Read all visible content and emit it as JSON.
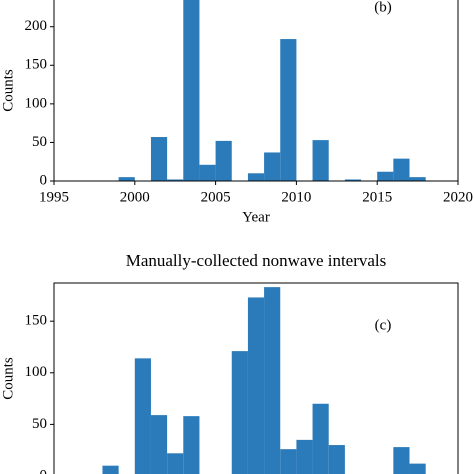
{
  "chart_data": [
    {
      "type": "histogram",
      "annotation": "(b)",
      "x_label": "Year",
      "y_label": "Counts",
      "color": "#2b7bba",
      "bins": [
        1999,
        2000,
        2001,
        2002,
        2003,
        2004,
        2005,
        2006,
        2007,
        2008,
        2009,
        2010,
        2011,
        2012,
        2013,
        2014,
        2015,
        2016,
        2017,
        2018
      ],
      "values": [
        5,
        0,
        57,
        2,
        250,
        21,
        52,
        0,
        10,
        37,
        184,
        0,
        53,
        0,
        2,
        0,
        12,
        29,
        5
      ],
      "xlim": [
        1995,
        2020
      ],
      "xticks": [
        1995,
        2000,
        2005,
        2010,
        2015,
        2020
      ],
      "ylim": [
        0,
        245
      ],
      "yticks": [
        0,
        50,
        100,
        150,
        200
      ]
    },
    {
      "type": "histogram",
      "title": "Manually-collected nonwave intervals",
      "annotation": "(c)",
      "y_label": "Counts",
      "color": "#2b7bba",
      "bins": [
        1998,
        1999,
        2000,
        2001,
        2002,
        2003,
        2004,
        2005,
        2006,
        2007,
        2008,
        2009,
        2010,
        2011,
        2012,
        2013,
        2014,
        2015,
        2016,
        2017,
        2018
      ],
      "values": [
        10,
        0,
        114,
        59,
        22,
        58,
        0,
        0,
        121,
        173,
        183,
        26,
        35,
        70,
        30,
        0,
        0,
        0,
        28,
        12
      ],
      "xlim": [
        1995,
        2020
      ],
      "ylim": [
        0,
        187
      ],
      "yticks": [
        0,
        50,
        100,
        150
      ]
    }
  ]
}
